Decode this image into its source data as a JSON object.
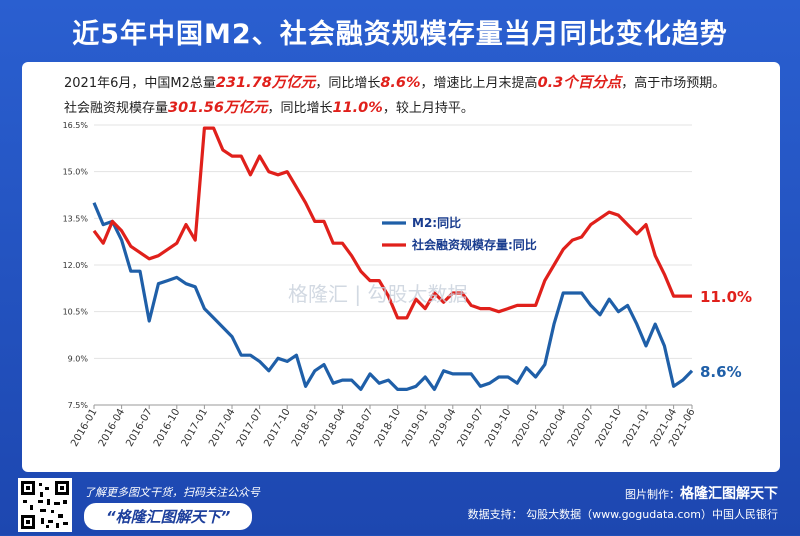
{
  "header": {
    "title": "近5年中国M2、社会融资规模存量当月同比变化趋势"
  },
  "summary": {
    "line1": {
      "p1": "2021年6月，中国M2总量",
      "v1": "231.78万亿元",
      "p2": "，同比增长",
      "v2": "8.6%",
      "p3": "，增速比上月末提高",
      "v3": "0.3个百分点",
      "p4": "，高于市场预期。"
    },
    "line2": {
      "p1": "社会融资规模存量",
      "v1": "301.56万亿元",
      "p2": "，同比增长",
      "v2": "11.0%",
      "p3": "，较上月持平。"
    }
  },
  "watermark": {
    "text": "格隆汇 | 勾股大数据"
  },
  "footer": {
    "cta_small": "了解更多图文干货，扫码关注公众号",
    "cta_big": "“格隆汇图解天下”",
    "made_by_label": "图片制作：",
    "made_by_brand": "格隆汇图解天下",
    "data_support": "数据支持：  勾股大数据（www.gogudata.com）中国人民银行"
  },
  "colors": {
    "m2": "#1f5fa8",
    "sf": "#e0201b",
    "grid": "#e3e3e3"
  },
  "chart_data": {
    "type": "line",
    "title": "近5年中国M2、社会融资规模存量当月同比变化趋势",
    "ylim": [
      7.5,
      16.5
    ],
    "yticks": [
      7.5,
      9.0,
      10.5,
      12.0,
      13.5,
      15.0,
      16.5
    ],
    "ytick_labels": [
      "7.5%",
      "9.0%",
      "10.5%",
      "12.0%",
      "13.5%",
      "15.0%",
      "16.5%"
    ],
    "xtick_labels": [
      "2016-01",
      "2016-04",
      "2016-07",
      "2016-10",
      "2017-01",
      "2017-04",
      "2017-07",
      "2017-10",
      "2018-01",
      "2018-04",
      "2018-07",
      "2018-10",
      "2019-01",
      "2019-04",
      "2019-07",
      "2019-10",
      "2020-01",
      "2020-04",
      "2020-07",
      "2020-10",
      "2021-01",
      "2021-04",
      "2021-06"
    ],
    "series": [
      {
        "name": "M2:同比",
        "end_label": "8.6%",
        "values": [
          14.0,
          13.3,
          13.4,
          12.8,
          11.8,
          11.8,
          10.2,
          11.4,
          11.5,
          11.6,
          11.4,
          11.3,
          10.6,
          10.3,
          10.0,
          9.7,
          9.1,
          9.1,
          8.9,
          8.6,
          9.0,
          8.9,
          9.1,
          8.1,
          8.6,
          8.8,
          8.2,
          8.3,
          8.3,
          8.0,
          8.5,
          8.2,
          8.3,
          8.0,
          8.0,
          8.1,
          8.4,
          8.0,
          8.6,
          8.5,
          8.5,
          8.5,
          8.1,
          8.2,
          8.4,
          8.4,
          8.2,
          8.7,
          8.4,
          8.8,
          10.1,
          11.1,
          11.1,
          11.1,
          10.7,
          10.4,
          10.9,
          10.5,
          10.7,
          10.1,
          9.4,
          10.1,
          9.4,
          8.1,
          8.3,
          8.6
        ]
      },
      {
        "name": "社会融资规模存量:同比",
        "end_label": "11.0%",
        "values": [
          13.1,
          12.7,
          13.4,
          13.1,
          12.6,
          12.4,
          12.2,
          12.3,
          12.5,
          12.7,
          13.3,
          12.8,
          16.4,
          16.4,
          15.7,
          15.5,
          15.5,
          14.9,
          15.5,
          15.0,
          14.9,
          15.0,
          14.5,
          14.0,
          13.4,
          13.4,
          12.7,
          12.7,
          12.3,
          11.8,
          11.5,
          11.5,
          11.0,
          10.3,
          10.3,
          10.9,
          10.6,
          11.1,
          10.8,
          11.1,
          11.1,
          10.7,
          10.6,
          10.6,
          10.5,
          10.6,
          10.7,
          10.7,
          10.7,
          11.5,
          12.0,
          12.5,
          12.8,
          12.9,
          13.3,
          13.5,
          13.7,
          13.6,
          13.3,
          13.0,
          13.3,
          12.3,
          11.7,
          11.0,
          11.0,
          11.0
        ]
      }
    ],
    "legend_position": "center"
  }
}
